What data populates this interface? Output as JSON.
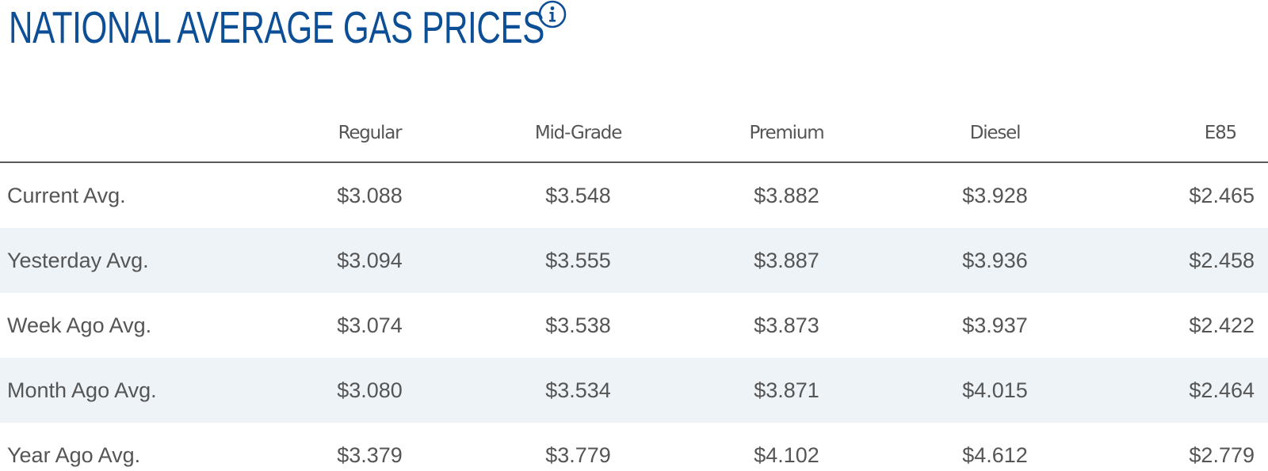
{
  "header": {
    "title": "NATIONAL AVERAGE GAS PRICES",
    "info_icon": "info-icon"
  },
  "colors": {
    "title": "#0d4f96",
    "text": "#555555",
    "row_alt_bg": "#eef3f7",
    "header_rule": "#5a5a5a"
  },
  "table": {
    "columns": [
      "",
      "Regular",
      "Mid-Grade",
      "Premium",
      "Diesel",
      "E85"
    ],
    "rows": [
      {
        "label": "Current Avg.",
        "values": [
          "$3.088",
          "$3.548",
          "$3.882",
          "$3.928",
          "$2.465"
        ]
      },
      {
        "label": "Yesterday Avg.",
        "values": [
          "$3.094",
          "$3.555",
          "$3.887",
          "$3.936",
          "$2.458"
        ]
      },
      {
        "label": "Week Ago Avg.",
        "values": [
          "$3.074",
          "$3.538",
          "$3.873",
          "$3.937",
          "$2.422"
        ]
      },
      {
        "label": "Month Ago Avg.",
        "values": [
          "$3.080",
          "$3.534",
          "$3.871",
          "$4.015",
          "$2.464"
        ]
      },
      {
        "label": "Year Ago Avg.",
        "values": [
          "$3.379",
          "$3.779",
          "$4.102",
          "$4.612",
          "$2.779"
        ]
      }
    ]
  }
}
